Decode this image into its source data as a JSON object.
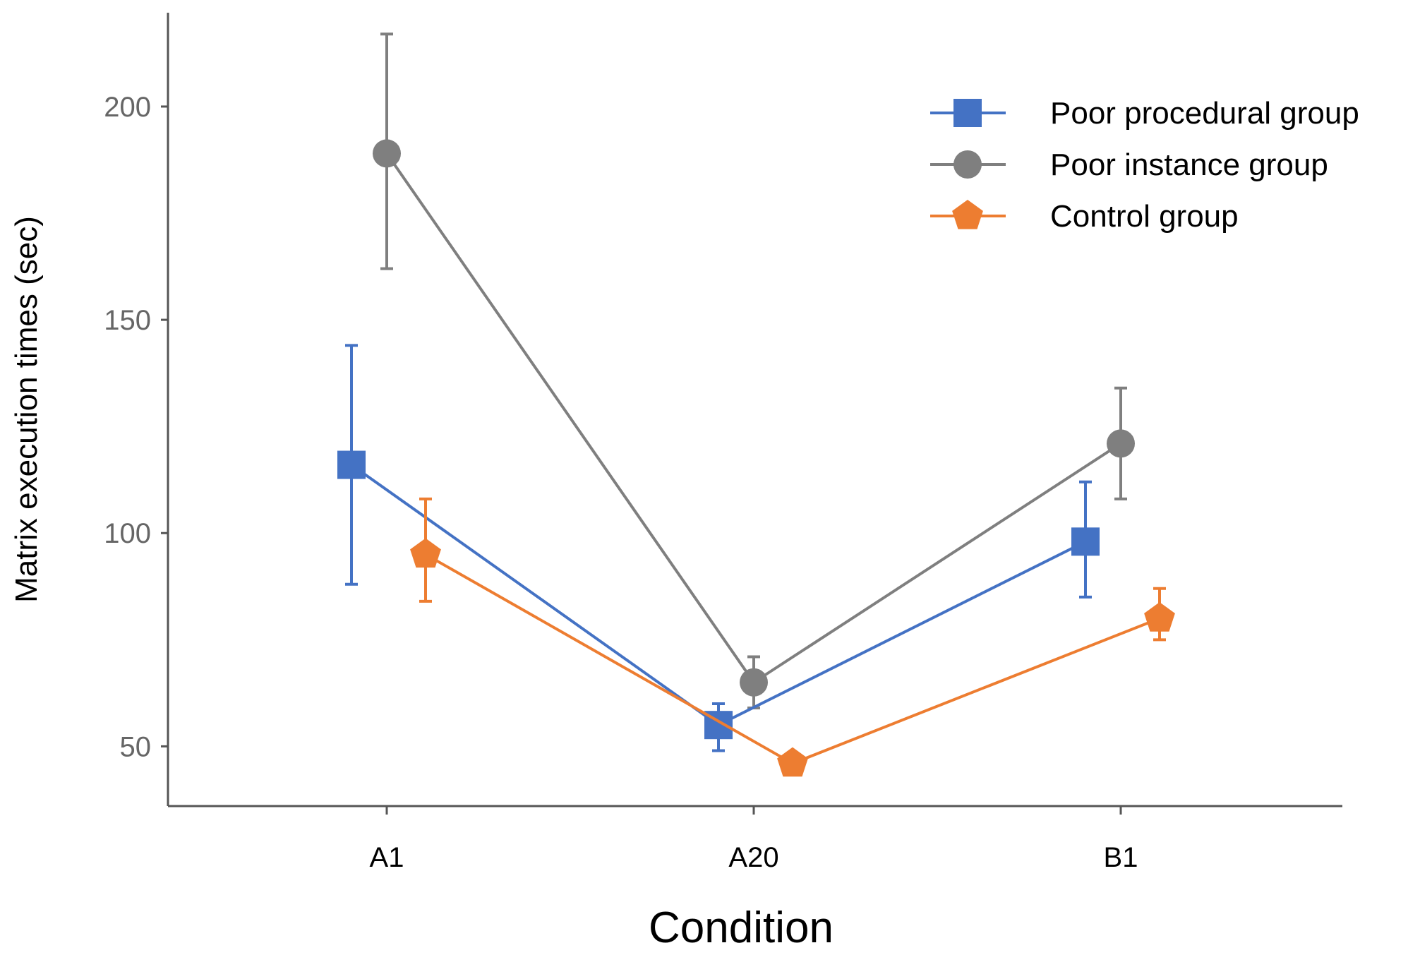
{
  "chart_data": {
    "type": "line",
    "title": "",
    "xlabel": "Condition",
    "ylabel": "Matrix execution times (sec)",
    "categories": [
      "A1",
      "A20",
      "B1"
    ],
    "ylim": [
      36,
      222
    ],
    "yticks": [
      50,
      100,
      150,
      200
    ],
    "grid": false,
    "legend_position": "top-right",
    "series": [
      {
        "name": "Poor procedural group",
        "color": "#4472C4",
        "marker": "square",
        "values": [
          116,
          55,
          98
        ],
        "error_low": [
          88,
          49,
          85
        ],
        "error_high": [
          144,
          60,
          112
        ]
      },
      {
        "name": "Poor instance group",
        "color": "#7F7F7F",
        "marker": "circle",
        "values": [
          189,
          65,
          121
        ],
        "error_low": [
          162,
          59,
          108
        ],
        "error_high": [
          217,
          71,
          134
        ]
      },
      {
        "name": "Control group",
        "color": "#ED7D31",
        "marker": "pentagon",
        "values": [
          95,
          46,
          80
        ],
        "error_low": [
          84,
          46,
          75
        ],
        "error_high": [
          108,
          46,
          87
        ]
      }
    ]
  }
}
